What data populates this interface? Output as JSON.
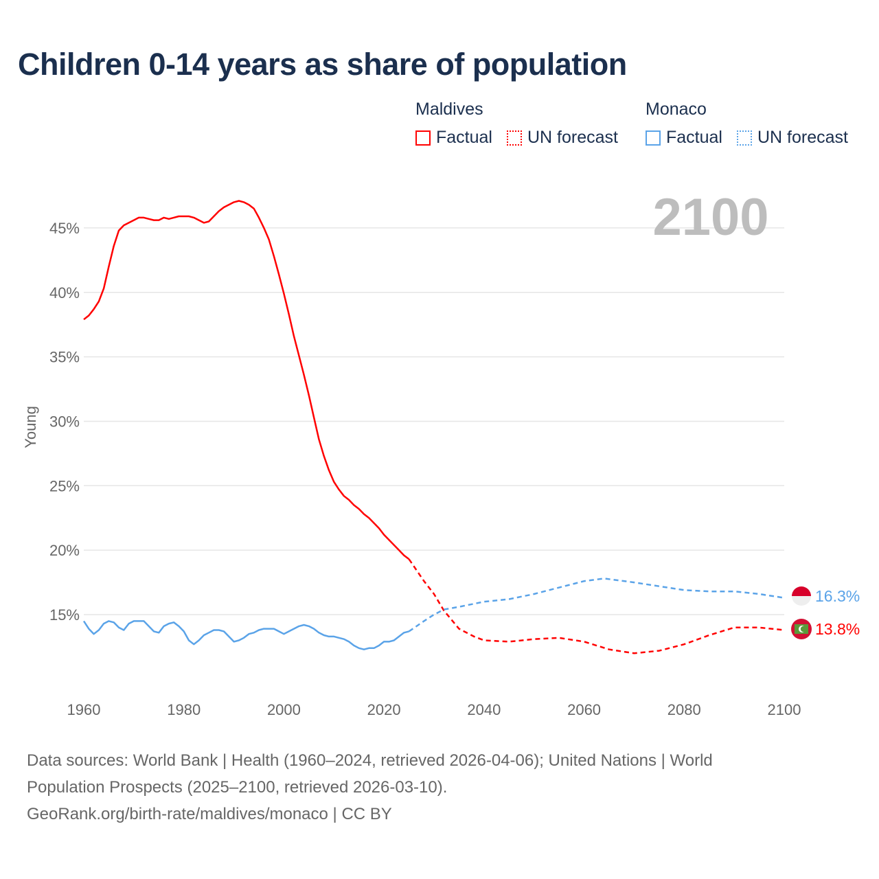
{
  "title": "Children 0-14 years as share of population",
  "legend": {
    "groups": [
      {
        "name": "Maldives",
        "color": "#ff0000",
        "items": [
          "Factual",
          "UN forecast"
        ]
      },
      {
        "name": "Monaco",
        "color": "#5aa3e8",
        "items": [
          "Factual",
          "UN forecast"
        ]
      }
    ]
  },
  "year_label": "2100",
  "footer": {
    "line1": "Data sources: World Bank | Health (1960–2024, retrieved 2026-04-06); United Nations | World",
    "line2": "Population Prospects (2025–2100, retrieved 2026-03-10).",
    "line3": "GeoRank.org/birth-rate/maldives/monaco | CC BY"
  },
  "chart_data": {
    "type": "line",
    "title": "Children 0-14 years as share of population",
    "xlabel": "",
    "ylabel": "Young",
    "xlim": [
      1960,
      2100
    ],
    "ylim": [
      10,
      48
    ],
    "x_ticks": [
      "1960",
      "1980",
      "2000",
      "2020",
      "2040",
      "2060",
      "2080",
      "2100"
    ],
    "y_ticks": [
      "15%",
      "20%",
      "25%",
      "30%",
      "35%",
      "40%",
      "45%"
    ],
    "y_tick_values": [
      15,
      20,
      25,
      30,
      35,
      40,
      45
    ],
    "grid": true,
    "end_labels": [
      {
        "series": "Monaco",
        "label": "16.3%",
        "color": "#5aa3e8",
        "value": 16.3
      },
      {
        "series": "Maldives",
        "label": "13.8%",
        "color": "#ff0000",
        "value": 13.8
      }
    ],
    "series": [
      {
        "name": "Maldives",
        "kind": "Factual",
        "color": "#ff0000",
        "dash": false,
        "x": [
          1960,
          1961,
          1962,
          1963,
          1964,
          1965,
          1966,
          1967,
          1968,
          1969,
          1970,
          1971,
          1972,
          1973,
          1974,
          1975,
          1976,
          1977,
          1978,
          1979,
          1980,
          1981,
          1982,
          1983,
          1984,
          1985,
          1986,
          1987,
          1988,
          1989,
          1990,
          1991,
          1992,
          1993,
          1994,
          1995,
          1996,
          1997,
          1998,
          1999,
          2000,
          2001,
          2002,
          2003,
          2004,
          2005,
          2006,
          2007,
          2008,
          2009,
          2010,
          2011,
          2012,
          2013,
          2014,
          2015,
          2016,
          2017,
          2018,
          2019,
          2020,
          2021,
          2022,
          2023,
          2024,
          2025
        ],
        "y": [
          37.9,
          38.2,
          38.7,
          39.3,
          40.3,
          42.0,
          43.6,
          44.8,
          45.2,
          45.4,
          45.6,
          45.8,
          45.8,
          45.7,
          45.6,
          45.6,
          45.8,
          45.7,
          45.8,
          45.9,
          45.9,
          45.9,
          45.8,
          45.6,
          45.4,
          45.5,
          45.9,
          46.3,
          46.6,
          46.8,
          47.0,
          47.1,
          47.0,
          46.8,
          46.5,
          45.8,
          45.0,
          44.1,
          42.8,
          41.4,
          39.9,
          38.3,
          36.6,
          35.1,
          33.6,
          32.0,
          30.3,
          28.6,
          27.3,
          26.2,
          25.3,
          24.7,
          24.2,
          23.9,
          23.5,
          23.2,
          22.8,
          22.5,
          22.1,
          21.7,
          21.2,
          20.8,
          20.4,
          20.0,
          19.6,
          19.3
        ]
      },
      {
        "name": "Maldives",
        "kind": "UN forecast",
        "color": "#ff0000",
        "dash": true,
        "x": [
          2025,
          2028,
          2030,
          2032,
          2035,
          2038,
          2040,
          2045,
          2050,
          2055,
          2060,
          2065,
          2070,
          2075,
          2080,
          2085,
          2090,
          2095,
          2100
        ],
        "y": [
          19.3,
          17.6,
          16.6,
          15.3,
          13.9,
          13.3,
          13.0,
          12.9,
          13.1,
          13.2,
          12.9,
          12.3,
          12.0,
          12.2,
          12.7,
          13.4,
          14.0,
          14.0,
          13.8
        ]
      },
      {
        "name": "Monaco",
        "kind": "Factual",
        "color": "#5aa3e8",
        "dash": false,
        "x": [
          1960,
          1961,
          1962,
          1963,
          1964,
          1965,
          1966,
          1967,
          1968,
          1969,
          1970,
          1971,
          1972,
          1973,
          1974,
          1975,
          1976,
          1977,
          1978,
          1979,
          1980,
          1981,
          1982,
          1983,
          1984,
          1985,
          1986,
          1987,
          1988,
          1989,
          1990,
          1991,
          1992,
          1993,
          1994,
          1995,
          1996,
          1997,
          1998,
          1999,
          2000,
          2001,
          2002,
          2003,
          2004,
          2005,
          2006,
          2007,
          2008,
          2009,
          2010,
          2011,
          2012,
          2013,
          2014,
          2015,
          2016,
          2017,
          2018,
          2019,
          2020,
          2021,
          2022,
          2023,
          2024,
          2025
        ],
        "y": [
          14.5,
          13.9,
          13.5,
          13.8,
          14.3,
          14.5,
          14.4,
          14.0,
          13.8,
          14.3,
          14.5,
          14.5,
          14.5,
          14.1,
          13.7,
          13.6,
          14.1,
          14.3,
          14.4,
          14.1,
          13.7,
          13.0,
          12.7,
          13.0,
          13.4,
          13.6,
          13.8,
          13.8,
          13.7,
          13.3,
          12.9,
          13.0,
          13.2,
          13.5,
          13.6,
          13.8,
          13.9,
          13.9,
          13.9,
          13.7,
          13.5,
          13.7,
          13.9,
          14.1,
          14.2,
          14.1,
          13.9,
          13.6,
          13.4,
          13.3,
          13.3,
          13.2,
          13.1,
          12.9,
          12.6,
          12.4,
          12.3,
          12.4,
          12.4,
          12.6,
          12.9,
          12.9,
          13.0,
          13.3,
          13.6,
          13.7
        ]
      },
      {
        "name": "Monaco",
        "kind": "UN forecast",
        "color": "#5aa3e8",
        "dash": true,
        "x": [
          2025,
          2028,
          2030,
          2032,
          2035,
          2040,
          2045,
          2050,
          2055,
          2060,
          2064,
          2070,
          2075,
          2080,
          2085,
          2090,
          2095,
          2100
        ],
        "y": [
          13.7,
          14.5,
          15.0,
          15.4,
          15.6,
          16.0,
          16.2,
          16.6,
          17.1,
          17.6,
          17.8,
          17.5,
          17.2,
          16.9,
          16.8,
          16.8,
          16.6,
          16.3
        ]
      }
    ]
  }
}
